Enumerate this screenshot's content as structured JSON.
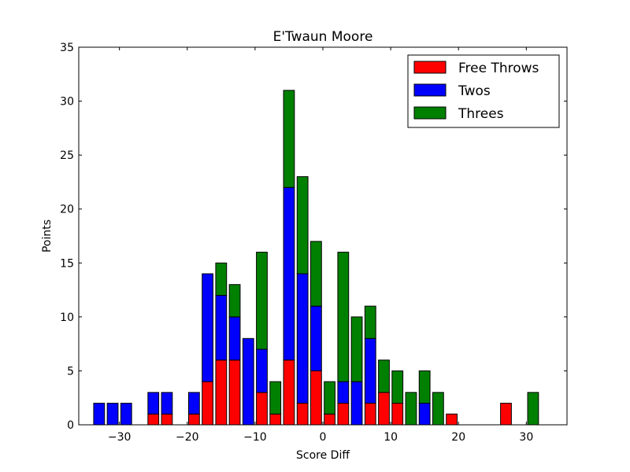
{
  "chart_data": {
    "type": "bar",
    "stacked": true,
    "title": "E'Twaun Moore",
    "xlabel": "Score Diff",
    "ylabel": "Points",
    "xlim": [
      -36,
      36
    ],
    "ylim": [
      0,
      35
    ],
    "xticks": [
      -30,
      -20,
      -10,
      0,
      10,
      20,
      30
    ],
    "yticks": [
      0,
      5,
      10,
      15,
      20,
      25,
      30,
      35
    ],
    "grid": false,
    "legend_position": "top-right",
    "bar_width": 1.6,
    "x": [
      -33,
      -31,
      -29,
      -25,
      -23,
      -19,
      -17,
      -15,
      -13,
      -11,
      -9,
      -7,
      -5,
      -3,
      -1,
      1,
      3,
      5,
      7,
      9,
      11,
      13,
      15,
      17,
      19,
      27,
      31
    ],
    "series": [
      {
        "name": "Free Throws",
        "color": "#ff0000",
        "values": [
          0,
          0,
          0,
          1,
          1,
          1,
          4,
          6,
          6,
          0,
          3,
          1,
          6,
          2,
          5,
          1,
          2,
          0,
          2,
          3,
          2,
          0,
          0,
          0,
          1,
          2,
          0
        ]
      },
      {
        "name": "Twos",
        "color": "#0000ff",
        "values": [
          2,
          2,
          2,
          2,
          2,
          2,
          10,
          6,
          4,
          8,
          4,
          0,
          16,
          12,
          6,
          0,
          2,
          4,
          6,
          0,
          0,
          0,
          2,
          0,
          0,
          0,
          0
        ]
      },
      {
        "name": "Threes",
        "color": "#008000",
        "values": [
          0,
          0,
          0,
          0,
          0,
          0,
          0,
          3,
          3,
          0,
          9,
          3,
          9,
          9,
          6,
          3,
          12,
          6,
          3,
          3,
          3,
          3,
          3,
          3,
          0,
          0,
          3
        ]
      }
    ]
  }
}
